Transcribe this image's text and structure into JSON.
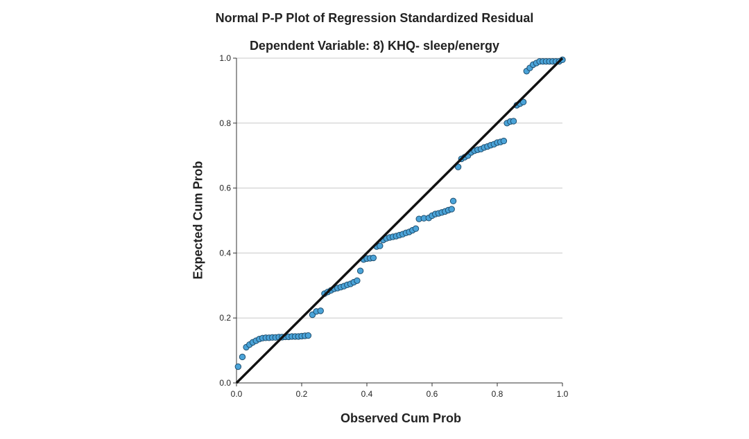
{
  "chart_data": {
    "type": "scatter",
    "title": "Normal P-P Plot of Regression Standardized Residual",
    "subtitle": "Dependent Variable: 8) KHQ- sleep/energy",
    "xlabel": "Observed Cum Prob",
    "ylabel": "Expected Cum Prob",
    "xlim": [
      0,
      1
    ],
    "ylim": [
      0,
      1
    ],
    "xticks": [
      "0.0",
      "0.2",
      "0.4",
      "0.6",
      "0.8",
      "1.0"
    ],
    "yticks": [
      "0.0",
      "0.2",
      "0.4",
      "0.6",
      "0.8",
      "1.0"
    ],
    "grid": "horizontal",
    "point_color": "#4aa3d8",
    "point_edge_color": "#1f4e6e",
    "reference_line": {
      "from": [
        0,
        0
      ],
      "to": [
        1,
        1
      ],
      "color": "#111111"
    },
    "points": [
      [
        0.005,
        0.05
      ],
      [
        0.018,
        0.08
      ],
      [
        0.03,
        0.11
      ],
      [
        0.04,
        0.118
      ],
      [
        0.05,
        0.125
      ],
      [
        0.06,
        0.13
      ],
      [
        0.07,
        0.135
      ],
      [
        0.08,
        0.138
      ],
      [
        0.09,
        0.139
      ],
      [
        0.1,
        0.139
      ],
      [
        0.11,
        0.14
      ],
      [
        0.12,
        0.14
      ],
      [
        0.13,
        0.141
      ],
      [
        0.14,
        0.141
      ],
      [
        0.15,
        0.142
      ],
      [
        0.16,
        0.142
      ],
      [
        0.17,
        0.143
      ],
      [
        0.18,
        0.143
      ],
      [
        0.19,
        0.143
      ],
      [
        0.2,
        0.144
      ],
      [
        0.21,
        0.145
      ],
      [
        0.22,
        0.146
      ],
      [
        0.233,
        0.21
      ],
      [
        0.245,
        0.22
      ],
      [
        0.258,
        0.222
      ],
      [
        0.27,
        0.275
      ],
      [
        0.28,
        0.28
      ],
      [
        0.29,
        0.285
      ],
      [
        0.3,
        0.29
      ],
      [
        0.31,
        0.292
      ],
      [
        0.32,
        0.295
      ],
      [
        0.33,
        0.298
      ],
      [
        0.34,
        0.302
      ],
      [
        0.35,
        0.305
      ],
      [
        0.36,
        0.31
      ],
      [
        0.37,
        0.315
      ],
      [
        0.38,
        0.345
      ],
      [
        0.39,
        0.38
      ],
      [
        0.4,
        0.383
      ],
      [
        0.41,
        0.384
      ],
      [
        0.42,
        0.385
      ],
      [
        0.43,
        0.42
      ],
      [
        0.44,
        0.422
      ],
      [
        0.45,
        0.44
      ],
      [
        0.46,
        0.445
      ],
      [
        0.47,
        0.448
      ],
      [
        0.48,
        0.45
      ],
      [
        0.49,
        0.452
      ],
      [
        0.5,
        0.455
      ],
      [
        0.51,
        0.458
      ],
      [
        0.52,
        0.462
      ],
      [
        0.53,
        0.465
      ],
      [
        0.54,
        0.47
      ],
      [
        0.55,
        0.475
      ],
      [
        0.56,
        0.505
      ],
      [
        0.575,
        0.507
      ],
      [
        0.59,
        0.508
      ],
      [
        0.6,
        0.515
      ],
      [
        0.61,
        0.52
      ],
      [
        0.62,
        0.522
      ],
      [
        0.63,
        0.525
      ],
      [
        0.64,
        0.528
      ],
      [
        0.65,
        0.532
      ],
      [
        0.66,
        0.535
      ],
      [
        0.665,
        0.56
      ],
      [
        0.68,
        0.665
      ],
      [
        0.69,
        0.69
      ],
      [
        0.7,
        0.695
      ],
      [
        0.71,
        0.7
      ],
      [
        0.72,
        0.71
      ],
      [
        0.73,
        0.715
      ],
      [
        0.74,
        0.718
      ],
      [
        0.75,
        0.72
      ],
      [
        0.76,
        0.725
      ],
      [
        0.77,
        0.728
      ],
      [
        0.78,
        0.732
      ],
      [
        0.79,
        0.735
      ],
      [
        0.8,
        0.74
      ],
      [
        0.81,
        0.742
      ],
      [
        0.82,
        0.745
      ],
      [
        0.83,
        0.8
      ],
      [
        0.84,
        0.805
      ],
      [
        0.85,
        0.806
      ],
      [
        0.86,
        0.855
      ],
      [
        0.87,
        0.86
      ],
      [
        0.88,
        0.865
      ],
      [
        0.89,
        0.96
      ],
      [
        0.9,
        0.97
      ],
      [
        0.91,
        0.98
      ],
      [
        0.92,
        0.985
      ],
      [
        0.93,
        0.99
      ],
      [
        0.94,
        0.99
      ],
      [
        0.95,
        0.99
      ],
      [
        0.96,
        0.99
      ],
      [
        0.97,
        0.99
      ],
      [
        0.98,
        0.99
      ],
      [
        0.99,
        0.99
      ],
      [
        1.0,
        0.995
      ]
    ]
  }
}
